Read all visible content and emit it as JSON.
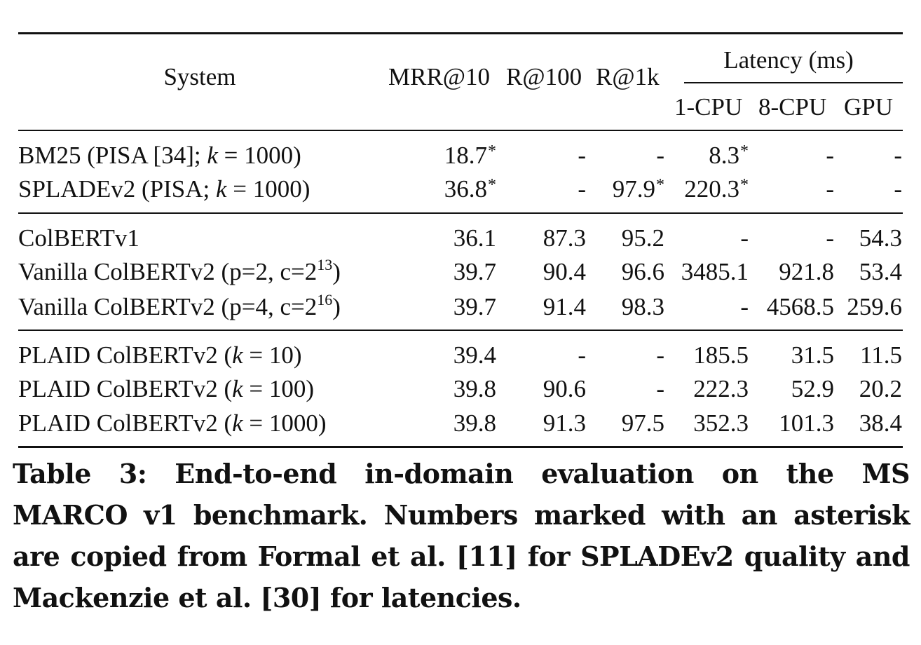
{
  "table": {
    "header": {
      "system": "System",
      "mrr": "MRR@10",
      "r100": "R@100",
      "r1k": "R@1k",
      "latency_group": "Latency (ms)",
      "cpu1": "1-CPU",
      "cpu8": "8-CPU",
      "gpu": "GPU"
    },
    "rows": [
      {
        "pre": "BM25 (PISA [34]; ",
        "var": "k",
        "post": " = 1000)",
        "sup": "",
        "mrr": "18.7",
        "mrr_ast": "*",
        "r100": "-",
        "r100_ast": "",
        "r1k": "-",
        "r1k_ast": "",
        "cpu1": "8.3",
        "cpu1_ast": "*",
        "cpu8": "-",
        "gpu": "-"
      },
      {
        "pre": "SPLADEv2 (PISA; ",
        "var": "k",
        "post": " = 1000)",
        "sup": "",
        "mrr": "36.8",
        "mrr_ast": "*",
        "r100": "-",
        "r100_ast": "",
        "r1k": "97.9",
        "r1k_ast": "*",
        "cpu1": "220.3",
        "cpu1_ast": "*",
        "cpu8": "-",
        "gpu": "-"
      },
      {
        "pre": "ColBERTv1",
        "var": "",
        "post": "",
        "sup": "",
        "mrr": "36.1",
        "mrr_ast": "",
        "r100": "87.3",
        "r100_ast": "",
        "r1k": "95.2",
        "r1k_ast": "",
        "cpu1": "-",
        "cpu1_ast": "",
        "cpu8": "-",
        "gpu": "54.3"
      },
      {
        "pre": "Vanilla ColBERTv2 (p=2, c=2",
        "var": "",
        "post": ")",
        "sup": "13",
        "mrr": "39.7",
        "mrr_ast": "",
        "r100": "90.4",
        "r100_ast": "",
        "r1k": "96.6",
        "r1k_ast": "",
        "cpu1": "3485.1",
        "cpu1_ast": "",
        "cpu8": "921.8",
        "gpu": "53.4"
      },
      {
        "pre": "Vanilla ColBERTv2 (p=4, c=2",
        "var": "",
        "post": ")",
        "sup": "16",
        "mrr": "39.7",
        "mrr_ast": "",
        "r100": "91.4",
        "r100_ast": "",
        "r1k": "98.3",
        "r1k_ast": "",
        "cpu1": "-",
        "cpu1_ast": "",
        "cpu8": "4568.5",
        "gpu": "259.6"
      },
      {
        "pre": "PLAID ColBERTv2 (",
        "var": "k",
        "post": " = 10)",
        "sup": "",
        "mrr": "39.4",
        "mrr_ast": "",
        "r100": "-",
        "r100_ast": "",
        "r1k": "-",
        "r1k_ast": "",
        "cpu1": "185.5",
        "cpu1_ast": "",
        "cpu8": "31.5",
        "gpu": "11.5"
      },
      {
        "pre": "PLAID ColBERTv2 (",
        "var": "k",
        "post": " = 100)",
        "sup": "",
        "mrr": "39.8",
        "mrr_ast": "",
        "r100": "90.6",
        "r100_ast": "",
        "r1k": "-",
        "r1k_ast": "",
        "cpu1": "222.3",
        "cpu1_ast": "",
        "cpu8": "52.9",
        "gpu": "20.2"
      },
      {
        "pre": "PLAID ColBERTv2 (",
        "var": "k",
        "post": " = 1000)",
        "sup": "",
        "mrr": "39.8",
        "mrr_ast": "",
        "r100": "91.3",
        "r100_ast": "",
        "r1k": "97.5",
        "r1k_ast": "",
        "cpu1": "352.3",
        "cpu1_ast": "",
        "cpu8": "101.3",
        "gpu": "38.4"
      }
    ]
  },
  "caption": {
    "lines": [
      "Table 3: End-to-end in-domain evaluation on the MS",
      "MARCO v1 benchmark. Numbers marked with an asterisk",
      "are copied from Formal et al. [11] for SPLADEv2 quality and",
      "Mackenzie et al. [30] for latencies."
    ]
  }
}
